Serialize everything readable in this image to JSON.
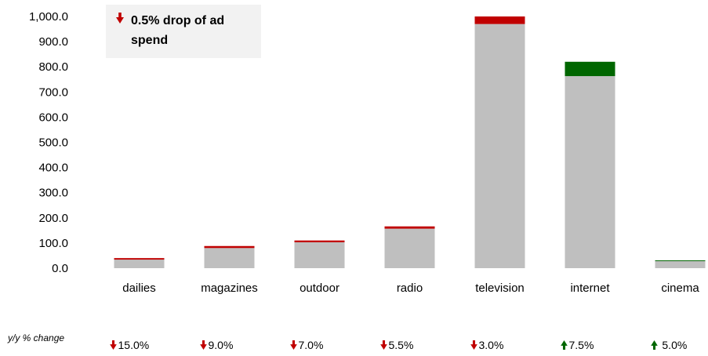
{
  "chart_data": {
    "type": "bar",
    "stacked": true,
    "categories": [
      "dailies",
      "magazines",
      "outdoor",
      "radio",
      "television",
      "internet",
      "cinema"
    ],
    "series": [
      {
        "values": [
          34,
          80,
          103,
          157,
          970,
          763,
          29
        ],
        "color": "#bfbfbf"
      },
      {
        "values": [
          6,
          8,
          7,
          9,
          30,
          57,
          2
        ],
        "colors": [
          "#c00000",
          "#c00000",
          "#c00000",
          "#c00000",
          "#c00000",
          "#006600",
          "#006600"
        ]
      }
    ],
    "yticks": [
      "0.0",
      "100.0",
      "200.0",
      "300.0",
      "400.0",
      "500.0",
      "600.0",
      "700.0",
      "800.0",
      "900.0",
      "1,000.0"
    ],
    "ylim": [
      0,
      1000
    ],
    "grid": false,
    "legend": "none"
  },
  "callout": {
    "text": "0.5% drop of ad spend",
    "direction": "down",
    "color": "#c00000"
  },
  "changes": {
    "label": "y/y % change",
    "items": [
      {
        "text": "15.0%",
        "direction": "down",
        "color": "#c00000"
      },
      {
        "text": "9.0%",
        "direction": "down",
        "color": "#c00000"
      },
      {
        "text": "7.0%",
        "direction": "down",
        "color": "#c00000"
      },
      {
        "text": "5.5%",
        "direction": "down",
        "color": "#c00000"
      },
      {
        "text": "3.0%",
        "direction": "down",
        "color": "#c00000"
      },
      {
        "text": "7.5%",
        "direction": "up",
        "color": "#006600"
      },
      {
        "text": " 5.0%",
        "direction": "up",
        "color": "#006600"
      }
    ]
  }
}
